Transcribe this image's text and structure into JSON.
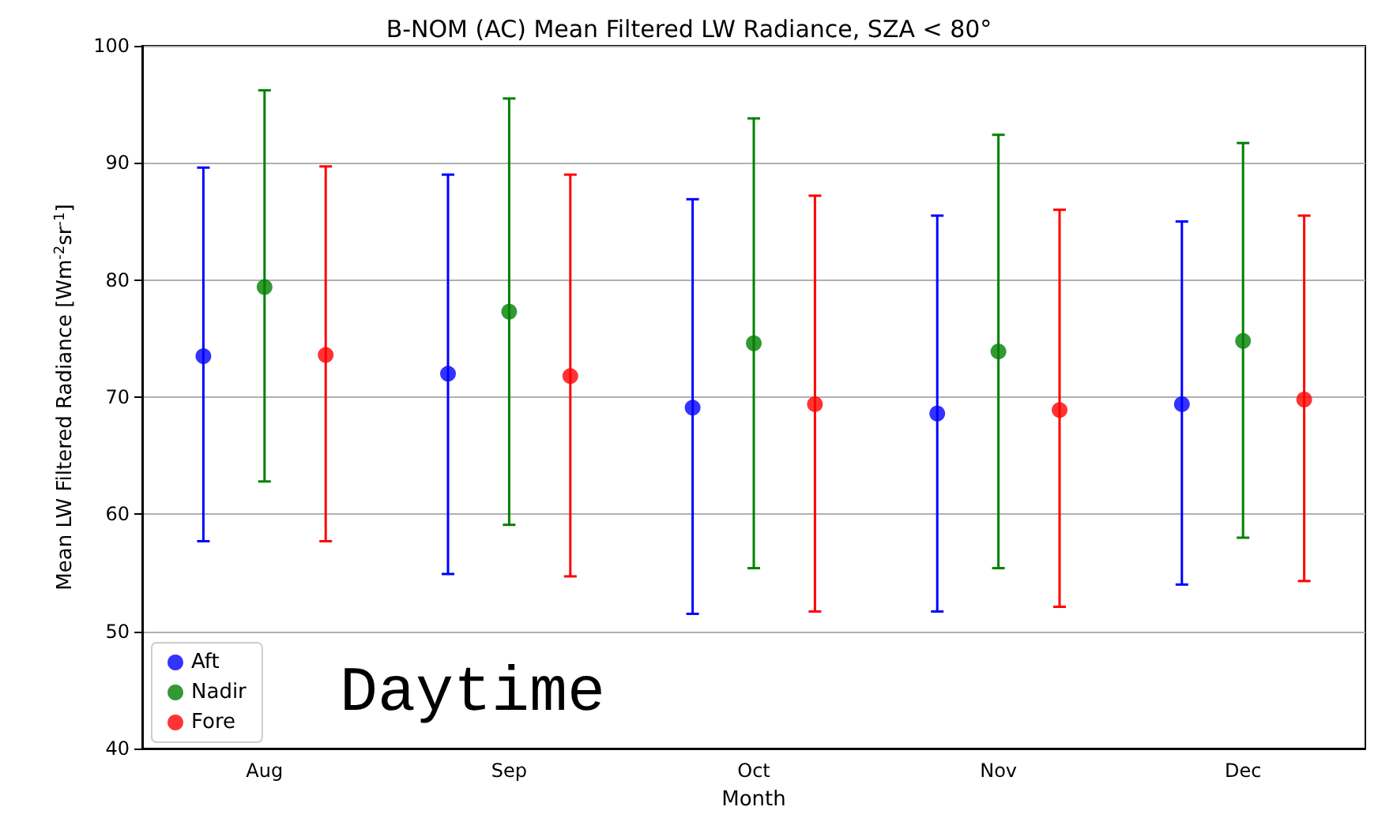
{
  "chart_data": {
    "type": "scatter",
    "title": "B-NOM (AC) Mean Filtered LW Radiance, SZA < 80°",
    "xlabel": "Month",
    "ylabel": "Mean LW Filtered Radiance [Wm$^{-2}$sr$^{-1}$]",
    "annotations": [
      "Daytime"
    ],
    "categories": [
      "Aug",
      "Sep",
      "Oct",
      "Nov",
      "Dec"
    ],
    "series": [
      {
        "name": "Aft",
        "color": "#0000ff",
        "values": [
          73.5,
          72.0,
          69.1,
          68.6,
          69.4
        ],
        "errors": [
          [
            57.7,
            89.6
          ],
          [
            54.9,
            89.0
          ],
          [
            51.5,
            86.9
          ],
          [
            51.7,
            85.5
          ],
          [
            54.0,
            85.0
          ]
        ]
      },
      {
        "name": "Nadir",
        "color": "#008000",
        "values": [
          79.4,
          77.3,
          74.6,
          73.9,
          74.8
        ],
        "errors": [
          [
            62.8,
            96.2
          ],
          [
            59.1,
            95.5
          ],
          [
            55.4,
            93.8
          ],
          [
            55.4,
            92.4
          ],
          [
            58.0,
            91.7
          ]
        ]
      },
      {
        "name": "Fore",
        "color": "#ff0000",
        "values": [
          73.6,
          71.8,
          69.4,
          68.9,
          69.8
        ],
        "errors": [
          [
            57.7,
            89.7
          ],
          [
            54.7,
            89.0
          ],
          [
            51.7,
            87.2
          ],
          [
            52.1,
            86.0
          ],
          [
            54.3,
            85.5
          ]
        ]
      }
    ],
    "ylim": [
      40,
      100
    ],
    "yticks": [
      40,
      50,
      60,
      70,
      80,
      90,
      100
    ],
    "grid": "y",
    "legend": "bottom left",
    "marker": "circle"
  }
}
